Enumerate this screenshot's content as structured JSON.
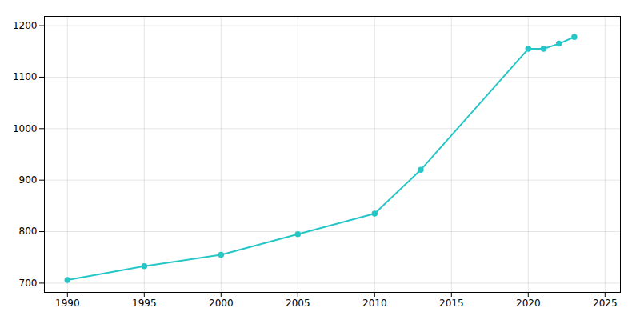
{
  "chart_data": {
    "type": "line",
    "x": [
      1990,
      1995,
      2000,
      2005,
      2010,
      2013,
      2020,
      2021,
      2022,
      2023
    ],
    "values": [
      706,
      733,
      755,
      795,
      835,
      920,
      1155,
      1155,
      1165,
      1178
    ],
    "color": "#26C6C6",
    "marker": "circle",
    "xlim": [
      1988.5,
      2026
    ],
    "ylim": [
      682,
      1218
    ],
    "xticks": [
      1990,
      1995,
      2000,
      2005,
      2010,
      2015,
      2020,
      2025
    ],
    "yticks": [
      700,
      800,
      900,
      1000,
      1100,
      1200
    ],
    "grid": true
  }
}
